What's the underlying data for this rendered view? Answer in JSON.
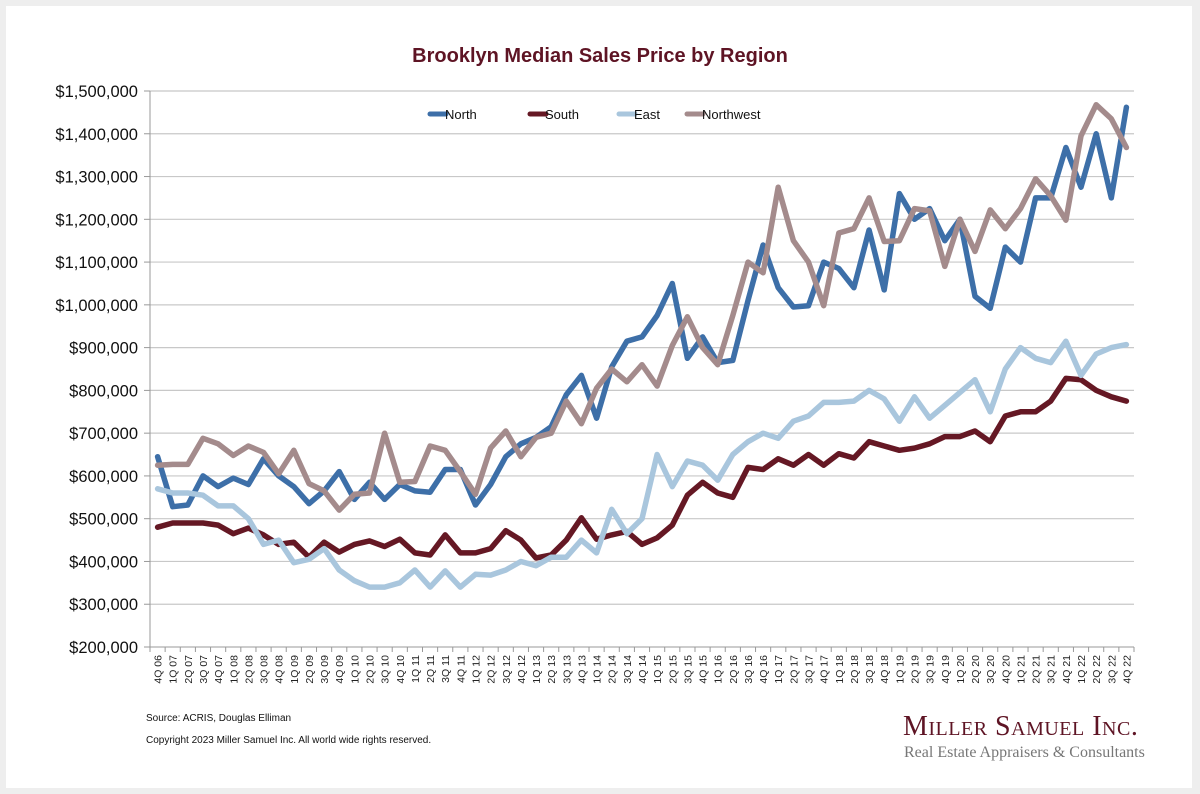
{
  "chart_data": {
    "type": "line",
    "title": "Brooklyn Median Sales Price by Region",
    "xlabel": "",
    "ylabel": "",
    "ylim": [
      200000,
      1500000
    ],
    "yticks": [
      200000,
      300000,
      400000,
      500000,
      600000,
      700000,
      800000,
      900000,
      1000000,
      1100000,
      1200000,
      1300000,
      1400000,
      1500000
    ],
    "ytick_labels": [
      "$200,000",
      "$300,000",
      "$400,000",
      "$500,000",
      "$600,000",
      "$700,000",
      "$800,000",
      "$900,000",
      "$1,000,000",
      "$1,100,000",
      "$1,200,000",
      "$1,300,000",
      "$1,400,000",
      "$1,500,000"
    ],
    "grid": true,
    "legend_position": "top-center",
    "categories": [
      "4Q 06",
      "1Q 07",
      "2Q 07",
      "3Q 07",
      "4Q 07",
      "1Q 08",
      "2Q 08",
      "3Q 08",
      "4Q 08",
      "1Q 09",
      "2Q 09",
      "3Q 09",
      "4Q 09",
      "1Q 10",
      "2Q 10",
      "3Q 10",
      "4Q 10",
      "1Q 11",
      "2Q 11",
      "3Q 11",
      "4Q 11",
      "1Q 12",
      "2Q 12",
      "3Q 12",
      "4Q 12",
      "1Q 13",
      "2Q 13",
      "3Q 13",
      "4Q 13",
      "1Q 14",
      "2Q 14",
      "3Q 14",
      "4Q 14",
      "1Q 15",
      "2Q 15",
      "3Q 15",
      "4Q 15",
      "1Q 16",
      "2Q 16",
      "3Q 16",
      "4Q 16",
      "1Q 17",
      "2Q 17",
      "3Q 17",
      "4Q 17",
      "1Q 18",
      "2Q 18",
      "3Q 18",
      "4Q 18",
      "1Q 19",
      "2Q 19",
      "3Q 19",
      "4Q 19",
      "1Q 20",
      "2Q 20",
      "3Q 20",
      "4Q 20",
      "1Q 21",
      "2Q 21",
      "3Q 21",
      "4Q 21",
      "1Q 22",
      "2Q 22",
      "3Q 22",
      "4Q 22"
    ],
    "series": [
      {
        "name": "North",
        "color": "#3d6fa8",
        "values": [
          645000,
          528000,
          532000,
          600000,
          575000,
          595000,
          580000,
          640000,
          600000,
          575000,
          535000,
          565000,
          610000,
          545000,
          585000,
          545000,
          580000,
          565000,
          562000,
          615000,
          615000,
          532000,
          580000,
          645000,
          675000,
          690000,
          715000,
          790000,
          835000,
          735000,
          855000,
          915000,
          925000,
          975000,
          1050000,
          875000,
          925000,
          865000,
          870000,
          1010000,
          1140000,
          1040000,
          995000,
          998000,
          1100000,
          1085000,
          1040000,
          1175000,
          1035000,
          1260000,
          1200000,
          1225000,
          1150000,
          1200000,
          1020000,
          992000,
          1135000,
          1100000,
          1250000,
          1250000,
          1368000,
          1275000,
          1400000,
          1250000,
          1462000
        ]
      },
      {
        "name": "South",
        "color": "#651824",
        "values": [
          480000,
          490000,
          490000,
          490000,
          485000,
          465000,
          478000,
          462000,
          440000,
          445000,
          410000,
          445000,
          422000,
          440000,
          448000,
          435000,
          452000,
          420000,
          415000,
          462000,
          420000,
          420000,
          430000,
          472000,
          450000,
          408000,
          415000,
          450000,
          502000,
          452000,
          462000,
          470000,
          440000,
          455000,
          485000,
          555000,
          585000,
          560000,
          550000,
          620000,
          615000,
          640000,
          625000,
          650000,
          625000,
          652000,
          642000,
          680000,
          670000,
          660000,
          665000,
          675000,
          692000,
          692000,
          705000,
          680000,
          740000,
          750000,
          750000,
          775000,
          828000,
          825000,
          800000,
          785000,
          775000
        ]
      },
      {
        "name": "East",
        "color": "#a9c6dd",
        "values": [
          570000,
          560000,
          560000,
          555000,
          530000,
          530000,
          500000,
          440000,
          450000,
          397000,
          405000,
          430000,
          380000,
          355000,
          340000,
          340000,
          350000,
          380000,
          340000,
          378000,
          340000,
          370000,
          368000,
          380000,
          400000,
          390000,
          410000,
          410000,
          450000,
          420000,
          522000,
          465000,
          500000,
          650000,
          575000,
          635000,
          625000,
          590000,
          650000,
          680000,
          700000,
          688000,
          728000,
          740000,
          772000,
          772000,
          775000,
          800000,
          780000,
          728000,
          785000,
          735000,
          765000,
          795000,
          825000,
          750000,
          850000,
          900000,
          875000,
          865000,
          915000,
          835000,
          885000,
          900000,
          907000
        ]
      },
      {
        "name": "Northwest",
        "color": "#a48b8c",
        "values": [
          625000,
          627000,
          627000,
          688000,
          675000,
          648000,
          670000,
          655000,
          605000,
          660000,
          582000,
          565000,
          520000,
          557000,
          560000,
          700000,
          585000,
          587000,
          670000,
          660000,
          610000,
          557000,
          665000,
          705000,
          645000,
          690000,
          700000,
          775000,
          722000,
          805000,
          850000,
          820000,
          860000,
          810000,
          905000,
          972000,
          900000,
          860000,
          975000,
          1100000,
          1075000,
          1275000,
          1150000,
          1100000,
          998000,
          1168000,
          1178000,
          1250000,
          1148000,
          1150000,
          1225000,
          1220000,
          1090000,
          1200000,
          1125000,
          1222000,
          1178000,
          1225000,
          1295000,
          1255000,
          1198000,
          1395000,
          1468000,
          1435000,
          1368000
        ]
      }
    ]
  },
  "footer": {
    "source": "Source: ACRIS, Douglas Elliman",
    "copyright": "Copyright 2023 Miller Samuel Inc.  All world wide rights reserved."
  },
  "logo": {
    "name": "Miller Samuel Inc.",
    "tagline": "Real Estate Appraisers & Consultants"
  }
}
